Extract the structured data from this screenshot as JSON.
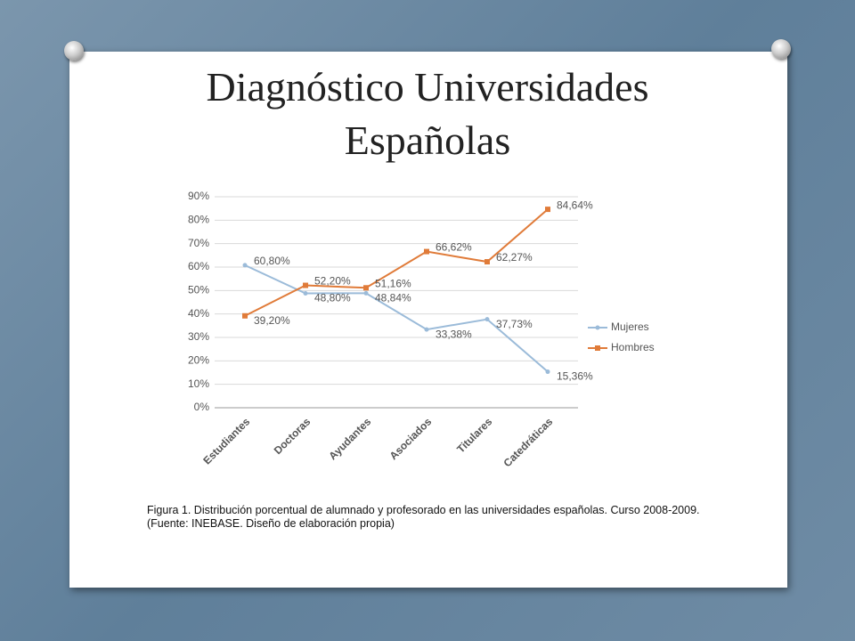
{
  "slide": {
    "title": "Diagnóstico Universidades Españolas",
    "caption": "Figura 1. Distribución porcentual de alumnado y profesorado en las universidades españolas. Curso 2008-2009. (Fuente: INEBASE. Diseño de elaboración propia)"
  },
  "chart_data": {
    "type": "line",
    "categories": [
      "Estudiantes",
      "Doctoras",
      "Ayudantes",
      "Asociados",
      "Titulares",
      "Catedráticas"
    ],
    "series": [
      {
        "name": "Mujeres",
        "color": "#9bbbd9",
        "values": [
          60.8,
          48.8,
          48.84,
          33.38,
          37.73,
          15.36
        ],
        "value_labels": [
          "60,80%",
          "48,80%",
          "48,84%",
          "33,38%",
          "37,73%",
          "15,36%"
        ]
      },
      {
        "name": "Hombres",
        "color": "#e07b39",
        "values": [
          39.2,
          52.2,
          51.16,
          66.62,
          62.27,
          84.64
        ],
        "value_labels": [
          "39,20%",
          "52,20%",
          "51,16%",
          "66,62%",
          "62,27%",
          "84,64%"
        ]
      }
    ],
    "ylim": [
      0,
      90
    ],
    "yticks": [
      {
        "value": 0,
        "label": "0%"
      },
      {
        "value": 10,
        "label": "10%"
      },
      {
        "value": 20,
        "label": "20%"
      },
      {
        "value": 30,
        "label": "30%"
      },
      {
        "value": 40,
        "label": "40%"
      },
      {
        "value": 50,
        "label": "50%"
      },
      {
        "value": 60,
        "label": "60%"
      },
      {
        "value": 70,
        "label": "70%"
      },
      {
        "value": 80,
        "label": "80%"
      },
      {
        "value": 90,
        "label": "90%"
      }
    ],
    "grid": true,
    "legend": "right"
  }
}
